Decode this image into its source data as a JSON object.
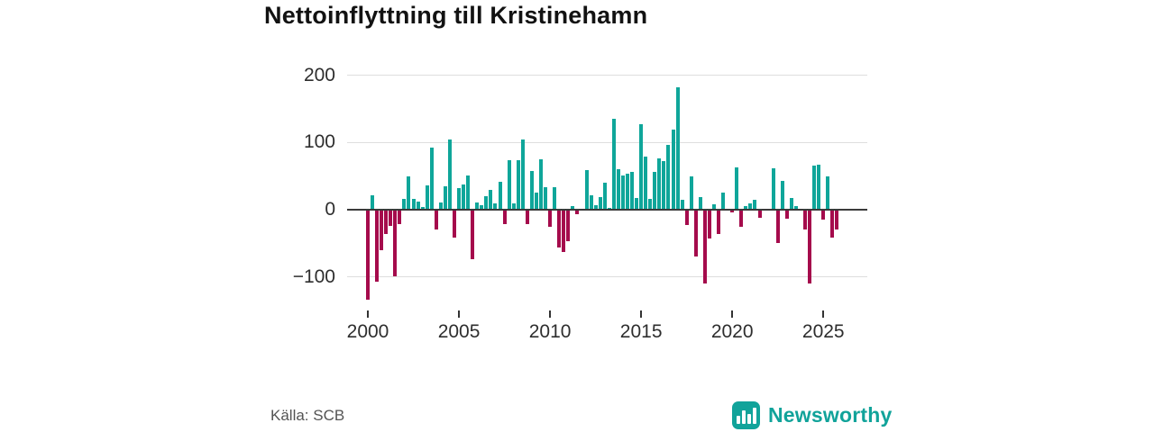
{
  "title": "Nettoinflyttning till Kristinehamn",
  "source_label": "Källa: SCB",
  "brand": {
    "name": "Newsworthy",
    "icon": "bar-chart-logo",
    "color": "#11a39a"
  },
  "colors": {
    "positive_bar": "#0fa69a",
    "negative_bar": "#a50b4c",
    "zero_line": "#3a3a3a",
    "gridline": "#dedede",
    "text": "#2e2e2e"
  },
  "chart_data": {
    "type": "bar",
    "title": "Nettoinflyttning till Kristinehamn",
    "xlabel": "",
    "ylabel": "",
    "frequency": "quarterly",
    "x_start_year": 2000,
    "periods_per_year": 4,
    "x_tick_labels": [
      "2000",
      "2005",
      "2010",
      "2015",
      "2020",
      "2025"
    ],
    "y_tick_values": [
      200,
      100,
      0,
      -100
    ],
    "y_tick_labels": [
      "200",
      "100",
      "0",
      "−100"
    ],
    "ylim": [
      -161,
      212
    ],
    "grid": "horizontal",
    "legend": "none",
    "values": [
      -134,
      22,
      -108,
      -61,
      -36,
      -24,
      -99,
      -21,
      16,
      49,
      16,
      12,
      4,
      36,
      93,
      -29,
      11,
      35,
      105,
      -41,
      32,
      38,
      51,
      -74,
      11,
      7,
      20,
      29,
      10,
      41,
      -21,
      74,
      9,
      74,
      104,
      -21,
      58,
      25,
      75,
      33,
      -25,
      34,
      -56,
      -63,
      -47,
      6,
      -7,
      -2,
      59,
      22,
      7,
      19,
      40,
      3,
      136,
      61,
      51,
      54,
      56,
      17,
      128,
      79,
      16,
      57,
      77,
      73,
      96,
      120,
      182,
      15,
      -23,
      50,
      -70,
      19,
      -110,
      -43,
      8,
      -36,
      25,
      2,
      -4,
      63,
      -25,
      5,
      10,
      15,
      -12,
      2,
      0,
      62,
      -50,
      43,
      -13,
      18,
      5,
      -2,
      -29,
      -110,
      66,
      67,
      -15,
      50,
      -41,
      -29
    ]
  }
}
